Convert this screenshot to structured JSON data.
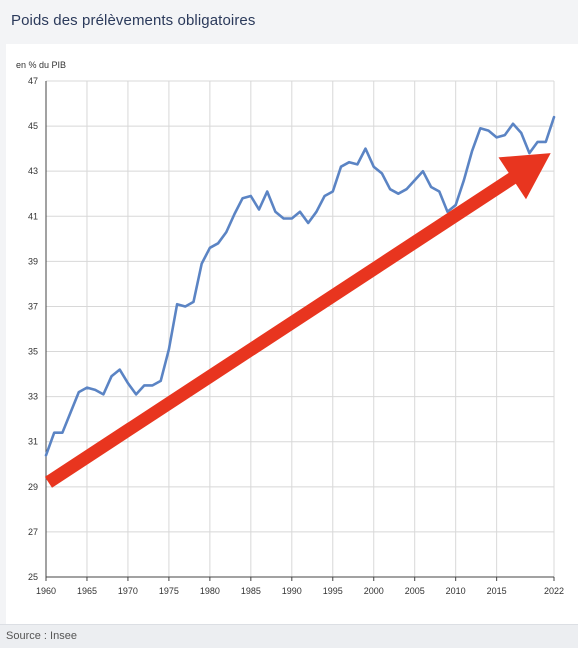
{
  "header": {
    "title": "Poids des prélèvements obligatoires"
  },
  "footer": {
    "source": "Source : Insee"
  },
  "colors": {
    "line": "#5b84c4",
    "arrow": "#e8351f",
    "grid": "#d8d8d8"
  },
  "chart_data": {
    "type": "line",
    "title": "",
    "xlabel": "",
    "ylabel": "en % du PIB",
    "xlim": [
      1960,
      2022
    ],
    "ylim": [
      25,
      47
    ],
    "x_ticks": [
      1960,
      1965,
      1970,
      1975,
      1980,
      1985,
      1990,
      1995,
      2000,
      2005,
      2010,
      2015,
      2022
    ],
    "x_tick_labels": [
      "1960",
      "1965",
      "1970",
      "1975",
      "1980",
      "1985",
      "1990",
      "1995",
      "2000",
      "2005",
      "2010",
      "2015",
      "2022"
    ],
    "y_ticks": [
      25,
      27,
      29,
      31,
      33,
      35,
      37,
      39,
      41,
      43,
      45,
      47
    ],
    "y_tick_labels": [
      "25",
      "27",
      "29",
      "31",
      "33",
      "35",
      "37",
      "39",
      "41",
      "43",
      "45",
      "47"
    ],
    "grid": true,
    "legend": "none",
    "series": [
      {
        "x": [
          1960,
          1961,
          1962,
          1963,
          1964,
          1965,
          1966,
          1967,
          1968,
          1969,
          1970,
          1971,
          1972,
          1973,
          1974,
          1975,
          1976,
          1977,
          1978,
          1979,
          1980,
          1981,
          1982,
          1983,
          1984,
          1985,
          1986,
          1987,
          1988,
          1989,
          1990,
          1991,
          1992,
          1993,
          1994,
          1995,
          1996,
          1997,
          1998,
          1999,
          2000,
          2001,
          2002,
          2003,
          2004,
          2005,
          2006,
          2007,
          2008,
          2009,
          2010,
          2011,
          2012,
          2013,
          2014,
          2015,
          2016,
          2017,
          2018,
          2019,
          2020,
          2021,
          2022
        ],
        "values": [
          30.4,
          31.4,
          31.4,
          32.3,
          33.2,
          33.4,
          33.3,
          33.1,
          33.9,
          34.2,
          33.6,
          33.1,
          33.5,
          33.5,
          33.7,
          35.1,
          37.1,
          37.0,
          37.2,
          38.9,
          39.6,
          39.8,
          40.3,
          41.1,
          41.8,
          41.9,
          41.3,
          42.1,
          41.2,
          40.9,
          40.9,
          41.2,
          40.7,
          41.2,
          41.9,
          42.1,
          43.2,
          43.4,
          43.3,
          44.0,
          43.2,
          42.9,
          42.2,
          42.0,
          42.2,
          42.6,
          43.0,
          42.3,
          42.1,
          41.2,
          41.5,
          42.6,
          43.9,
          44.9,
          44.8,
          44.5,
          44.6,
          45.1,
          44.7,
          43.8,
          44.3,
          44.3,
          45.4
        ]
      }
    ],
    "annotations": [
      {
        "type": "arrow",
        "from": [
          1960.3,
          29.2
        ],
        "to": [
          2021.6,
          43.8
        ]
      }
    ]
  }
}
